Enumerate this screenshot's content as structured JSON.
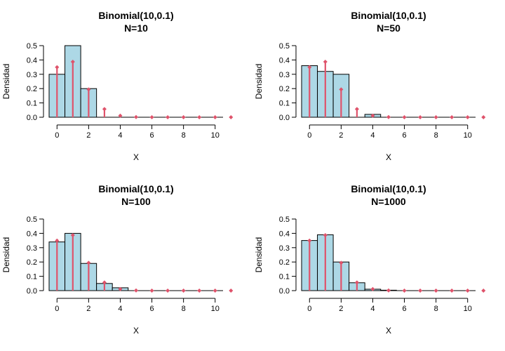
{
  "colors": {
    "bar_fill": "#add8e6",
    "bar_stroke": "#000000",
    "pmf_line": "#df536b",
    "axis": "#000000"
  },
  "chart_data": [
    {
      "type": "bar",
      "title": "Binomial(10,0.1)",
      "subtitle": "N=10",
      "xlabel": "X",
      "ylabel": "Densidad",
      "xlim": [
        -0.5,
        10.5
      ],
      "ylim": [
        0,
        0.5
      ],
      "xticks": [
        "0",
        "2",
        "4",
        "6",
        "8",
        "10"
      ],
      "yticks": [
        "0.0",
        "0.1",
        "0.2",
        "0.3",
        "0.4",
        "0.5"
      ],
      "histogram": {
        "bins": [
          [
            -0.5,
            0.5
          ],
          [
            0.5,
            1.5
          ],
          [
            1.5,
            2.5
          ]
        ],
        "values": [
          0.3,
          0.5,
          0.2
        ]
      },
      "pmf": {
        "x": [
          0,
          1,
          2,
          3,
          4,
          5,
          6,
          7,
          8,
          9,
          10,
          11
        ],
        "values": [
          0.349,
          0.387,
          0.194,
          0.057,
          0.011,
          0.0015,
          0.0001,
          0,
          0,
          0,
          0,
          0
        ]
      }
    },
    {
      "type": "bar",
      "title": "Binomial(10,0.1)",
      "subtitle": "N=50",
      "xlabel": "X",
      "ylabel": "Densidad",
      "xlim": [
        -0.5,
        10.5
      ],
      "ylim": [
        0,
        0.5
      ],
      "xticks": [
        "0",
        "2",
        "4",
        "6",
        "8",
        "10"
      ],
      "yticks": [
        "0.0",
        "0.1",
        "0.2",
        "0.3",
        "0.4",
        "0.5"
      ],
      "histogram": {
        "bins": [
          [
            -0.5,
            0.5
          ],
          [
            0.5,
            1.5
          ],
          [
            1.5,
            2.5
          ],
          [
            2.5,
            3.5
          ],
          [
            3.5,
            4.5
          ]
        ],
        "values": [
          0.36,
          0.32,
          0.3,
          0,
          0.02
        ]
      },
      "pmf": {
        "x": [
          0,
          1,
          2,
          3,
          4,
          5,
          6,
          7,
          8,
          9,
          10,
          11
        ],
        "values": [
          0.349,
          0.387,
          0.194,
          0.057,
          0.011,
          0.0015,
          0.0001,
          0,
          0,
          0,
          0,
          0
        ]
      }
    },
    {
      "type": "bar",
      "title": "Binomial(10,0.1)",
      "subtitle": "N=100",
      "xlabel": "X",
      "ylabel": "Densidad",
      "xlim": [
        -0.5,
        10.5
      ],
      "ylim": [
        0,
        0.5
      ],
      "xticks": [
        "0",
        "2",
        "4",
        "6",
        "8",
        "10"
      ],
      "yticks": [
        "0.0",
        "0.1",
        "0.2",
        "0.3",
        "0.4",
        "0.5"
      ],
      "histogram": {
        "bins": [
          [
            -0.5,
            0.5
          ],
          [
            0.5,
            1.5
          ],
          [
            1.5,
            2.5
          ],
          [
            2.5,
            3.5
          ],
          [
            3.5,
            4.5
          ]
        ],
        "values": [
          0.34,
          0.4,
          0.19,
          0.05,
          0.02
        ]
      },
      "pmf": {
        "x": [
          0,
          1,
          2,
          3,
          4,
          5,
          6,
          7,
          8,
          9,
          10,
          11
        ],
        "values": [
          0.349,
          0.387,
          0.194,
          0.057,
          0.011,
          0.0015,
          0.0001,
          0,
          0,
          0,
          0,
          0
        ]
      }
    },
    {
      "type": "bar",
      "title": "Binomial(10,0.1)",
      "subtitle": "N=1000",
      "xlabel": "X",
      "ylabel": "Densidad",
      "xlim": [
        -0.5,
        10.5
      ],
      "ylim": [
        0,
        0.5
      ],
      "xticks": [
        "0",
        "2",
        "4",
        "6",
        "8",
        "10"
      ],
      "yticks": [
        "0.0",
        "0.1",
        "0.2",
        "0.3",
        "0.4",
        "0.5"
      ],
      "histogram": {
        "bins": [
          [
            -0.5,
            0.5
          ],
          [
            0.5,
            1.5
          ],
          [
            1.5,
            2.5
          ],
          [
            2.5,
            3.5
          ],
          [
            3.5,
            4.5
          ],
          [
            4.5,
            5.5
          ]
        ],
        "values": [
          0.35,
          0.39,
          0.2,
          0.055,
          0.01,
          0.003
        ]
      },
      "pmf": {
        "x": [
          0,
          1,
          2,
          3,
          4,
          5,
          6,
          7,
          8,
          9,
          10,
          11
        ],
        "values": [
          0.349,
          0.387,
          0.194,
          0.057,
          0.011,
          0.0015,
          0.0001,
          0,
          0,
          0,
          0,
          0
        ]
      }
    }
  ]
}
